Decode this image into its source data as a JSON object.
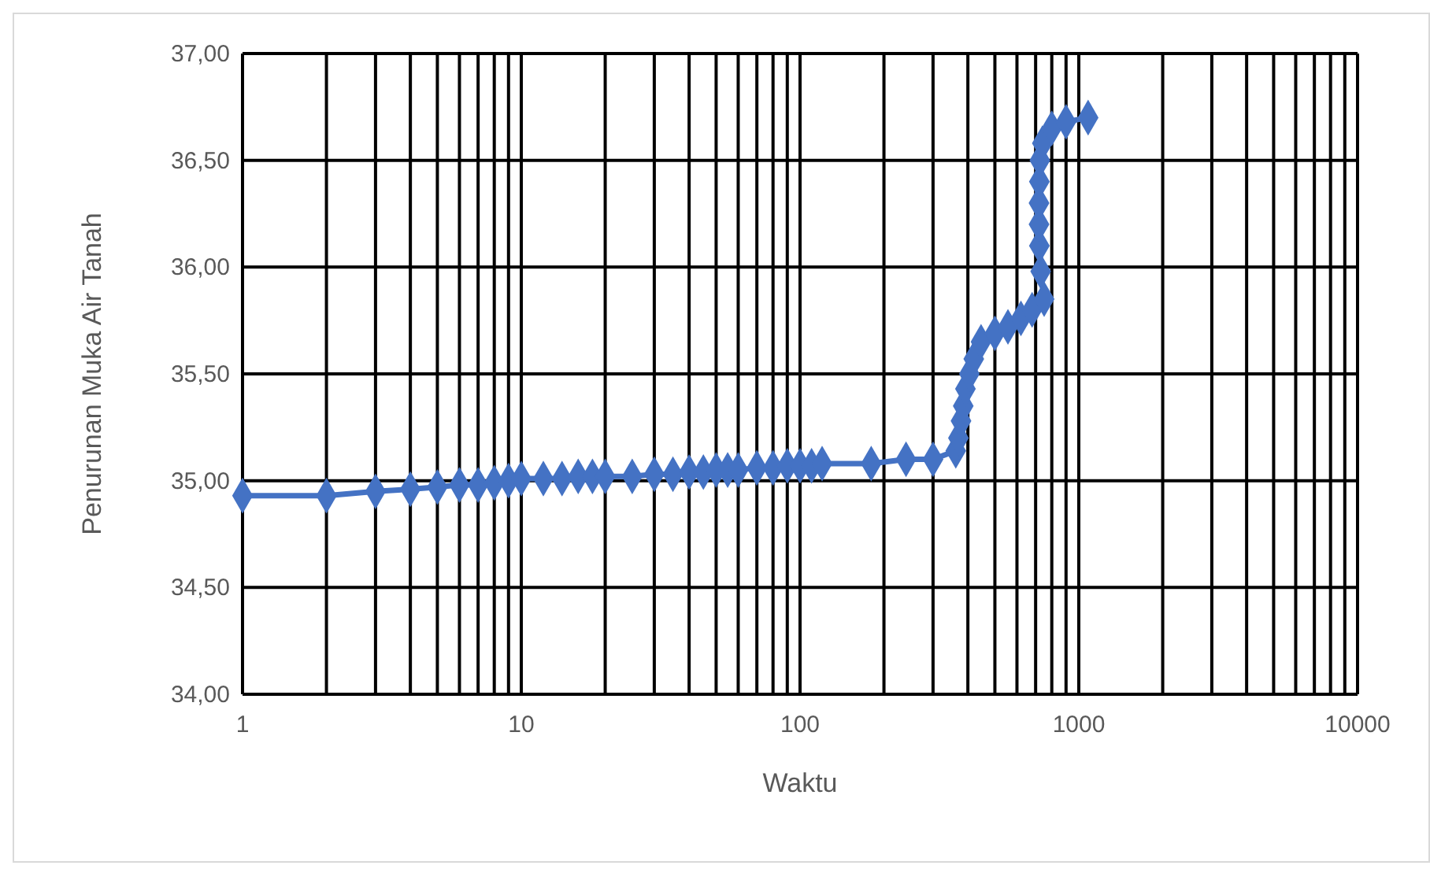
{
  "chart_data": {
    "type": "line",
    "xlabel": "Waktu",
    "ylabel": "Penurunan Muka Air Tanah",
    "log": "x",
    "grid": true,
    "marker": "diamond",
    "line_style": "solid",
    "xlim": [
      1,
      10000
    ],
    "ylim": [
      34,
      37
    ],
    "xticks": [
      1,
      {
        "value": 2,
        "label": null
      },
      {
        "value": 3,
        "label": null
      },
      {
        "value": 4,
        "label": null
      },
      {
        "value": 5,
        "label": null
      },
      {
        "value": 6,
        "label": null
      },
      {
        "value": 7,
        "label": null
      },
      {
        "value": 8,
        "label": null
      },
      {
        "value": 9,
        "label": null
      },
      10,
      {
        "value": 20,
        "label": null
      },
      {
        "value": 30,
        "label": null
      },
      {
        "value": 40,
        "label": null
      },
      {
        "value": 50,
        "label": null
      },
      {
        "value": 60,
        "label": null
      },
      {
        "value": 70,
        "label": null
      },
      {
        "value": 80,
        "label": null
      },
      {
        "value": 90,
        "label": null
      },
      100,
      {
        "value": 200,
        "label": null
      },
      {
        "value": 300,
        "label": null
      },
      {
        "value": 400,
        "label": null
      },
      {
        "value": 500,
        "label": null
      },
      {
        "value": 600,
        "label": null
      },
      {
        "value": 700,
        "label": null
      },
      {
        "value": 800,
        "label": null
      },
      {
        "value": 900,
        "label": null
      },
      1000,
      {
        "value": 2000,
        "label": null
      },
      {
        "value": 3000,
        "label": null
      },
      {
        "value": 4000,
        "label": null
      },
      {
        "value": 5000,
        "label": null
      },
      {
        "value": 6000,
        "label": null
      },
      {
        "value": 7000,
        "label": null
      },
      {
        "value": 8000,
        "label": null
      },
      {
        "value": 9000,
        "label": null
      },
      10000
    ],
    "yticks": [
      {
        "value": 34,
        "label": "34,00"
      },
      {
        "value": 34.5,
        "label": "34,50"
      },
      {
        "value": 35,
        "label": "35,00"
      },
      {
        "value": 35.5,
        "label": "35,50"
      },
      {
        "value": 36,
        "label": "36,00"
      },
      {
        "value": 36.5,
        "label": "36,50"
      },
      {
        "value": 37,
        "label": "37,00"
      }
    ],
    "series": [
      {
        "color": "#4472c4",
        "x": [
          1,
          2,
          3,
          4,
          5,
          6,
          7,
          8,
          9,
          10,
          12,
          14,
          16,
          18,
          20,
          25,
          30,
          35,
          40,
          45,
          50,
          55,
          60,
          70,
          80,
          90,
          100,
          110,
          120,
          180,
          240,
          300,
          362,
          370,
          378,
          385,
          392,
          405,
          420,
          446,
          500,
          557,
          620,
          680,
          751,
          730,
          722,
          720,
          720,
          722,
          725,
          740,
          800,
          900,
          1080
        ],
        "values": [
          34.93,
          34.93,
          34.95,
          34.96,
          34.97,
          34.98,
          34.98,
          34.99,
          35.0,
          35.01,
          35.01,
          35.01,
          35.02,
          35.02,
          35.02,
          35.02,
          35.03,
          35.03,
          35.04,
          35.04,
          35.05,
          35.05,
          35.05,
          35.06,
          35.06,
          35.07,
          35.07,
          35.07,
          35.08,
          35.08,
          35.1,
          35.1,
          35.14,
          35.2,
          35.28,
          35.35,
          35.43,
          35.5,
          35.57,
          35.65,
          35.69,
          35.72,
          35.76,
          35.8,
          35.85,
          35.98,
          36.1,
          36.2,
          36.3,
          36.4,
          36.5,
          36.58,
          36.65,
          36.68,
          36.7
        ]
      }
    ]
  }
}
